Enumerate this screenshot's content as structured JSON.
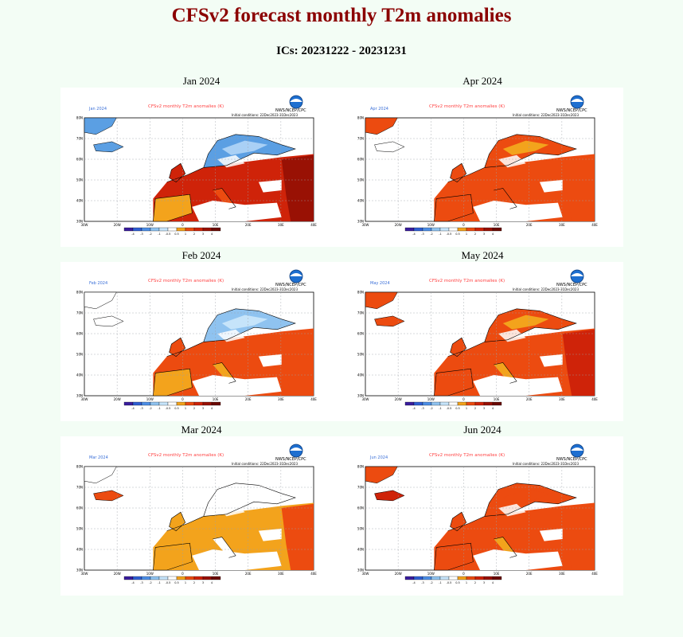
{
  "page": {
    "title": "CFSv2 forecast monthly T2m anomalies",
    "subtitle": "ICs: 20231222 - 20231231"
  },
  "panel_common": {
    "map_title": "CFSv2 monthly T2m anomalies (K)",
    "agency": "NWS/NCEP/CPC",
    "initial_conditions": "Initial conditions: 22Dec2023-31Dec2023",
    "lat_ticks": [
      "80N",
      "70N",
      "60N",
      "50N",
      "40N",
      "30N"
    ],
    "lon_ticks": [
      "30W",
      "20W",
      "10W",
      "0",
      "10E",
      "20E",
      "30E",
      "40E"
    ],
    "colorbar_labels": [
      "-4",
      "-3",
      "-2",
      "-1",
      "-0.5",
      "0.5",
      "1",
      "2",
      "3",
      "4"
    ],
    "colorbar_colors": [
      "#3a1d9e",
      "#2f5fd3",
      "#4d8fe6",
      "#8fc3f0",
      "#c6e4fa",
      "#ffffff",
      "#f3a31c",
      "#ec4b10",
      "#cf2309",
      "#991104",
      "#6b0a02"
    ]
  },
  "panels": [
    {
      "label": "Jan 2024",
      "map_label": "Jan 2024",
      "scheme": "jan"
    },
    {
      "label": "Apr 2024",
      "map_label": "Apr 2024",
      "scheme": "apr"
    },
    {
      "label": "Feb 2024",
      "map_label": "Feb 2024",
      "scheme": "feb"
    },
    {
      "label": "May 2024",
      "map_label": "May 2024",
      "scheme": "may"
    },
    {
      "label": "Mar 2024",
      "map_label": "Mar 2024",
      "scheme": "mar"
    },
    {
      "label": "Jun 2024",
      "map_label": "Jun 2024",
      "scheme": "jun"
    }
  ]
}
